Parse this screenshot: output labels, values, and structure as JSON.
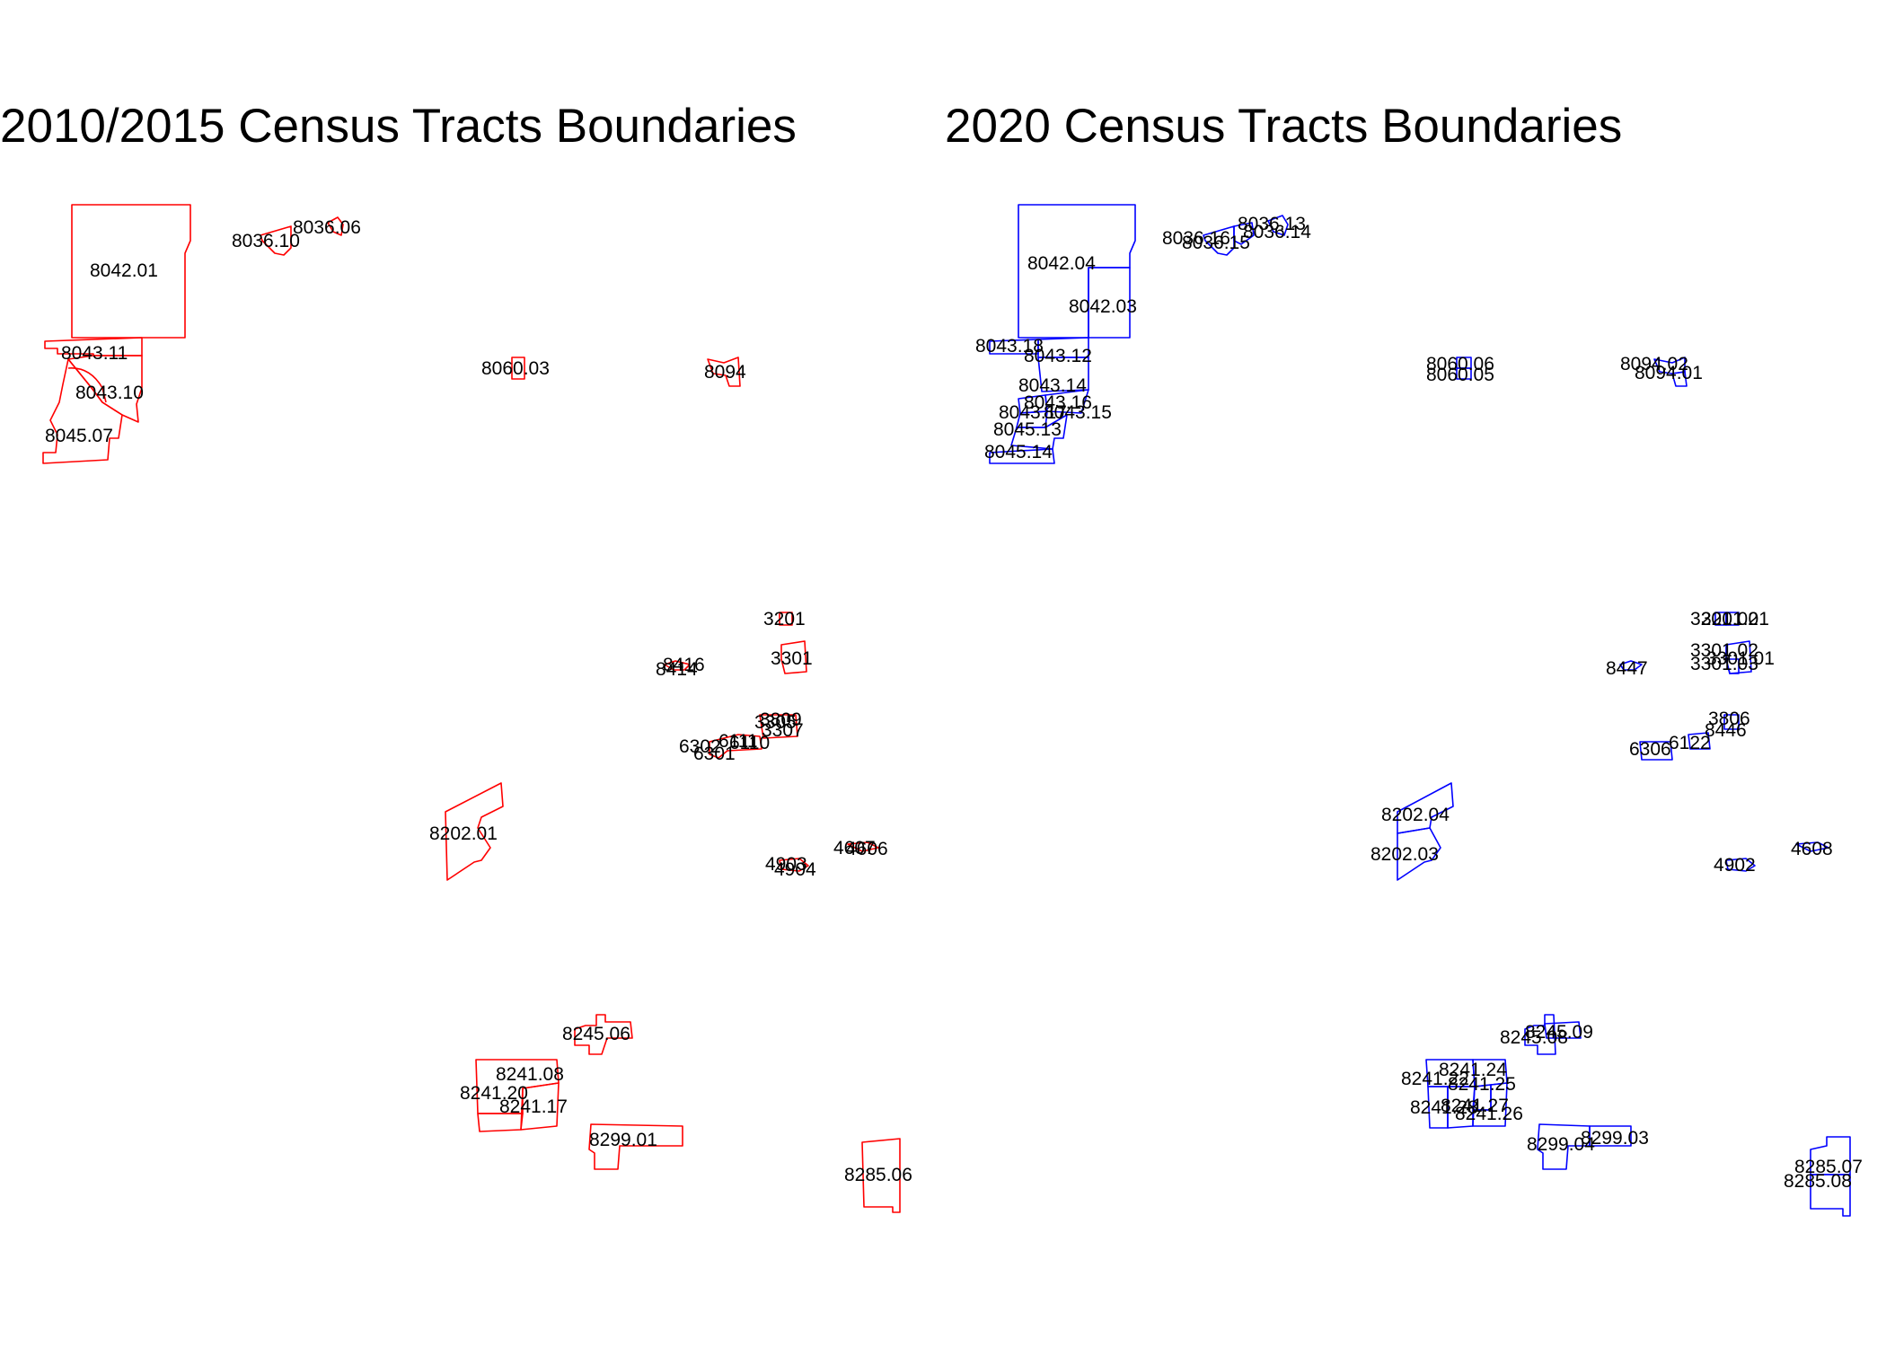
{
  "panels": [
    {
      "title": "2010/2015 Census Tracts Boundaries",
      "tract_color": "#ff0000",
      "tract_labels": [
        "8042.01",
        "8036.10",
        "8036.06",
        "8043.11",
        "8043.10",
        "8045.07",
        "8060.03",
        "8094",
        "3201",
        "3301",
        "8416",
        "8414",
        "3809",
        "3305",
        "3307",
        "6302",
        "6301",
        "6110",
        "6111",
        "8202.01",
        "4903",
        "4904",
        "4607",
        "4606",
        "8245.06",
        "8241.08",
        "8241.20",
        "8241.17",
        "8299.01",
        "8285.06"
      ]
    },
    {
      "title": "2020 Census Tracts Boundaries",
      "tract_color": "#0000ff",
      "tract_labels": [
        "8042.04",
        "8042.03",
        "8036.13",
        "8036.14",
        "8036.16",
        "8036.15",
        "8043.18",
        "8043.12",
        "8043.14",
        "8043.16",
        "8043.15",
        "8043.17",
        "8045.13",
        "8045.14",
        "8060.06",
        "8060.05",
        "8094.02",
        "8094.01",
        "3201.02",
        "3201.01",
        "3301.02",
        "3301.01",
        "3301.03",
        "8447",
        "3806",
        "8446",
        "6122",
        "6306",
        "8202.04",
        "8202.03",
        "4902",
        "4608",
        "8245.09",
        "8245.08",
        "8241.24",
        "8241.22",
        "8241.25",
        "8241.28",
        "8241.27",
        "8241.26",
        "8299.04",
        "8299.03",
        "8285.07",
        "8285.08"
      ]
    }
  ]
}
